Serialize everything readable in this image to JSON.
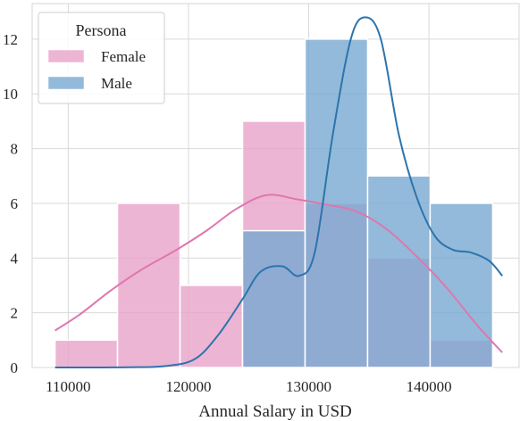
{
  "chart_data": {
    "type": "histogram",
    "xlabel": "Annual Salary in USD",
    "ylabel": "",
    "xlim": [
      107000,
      147500
    ],
    "ylim": [
      0,
      13.3
    ],
    "xticks": [
      110000,
      120000,
      130000,
      140000
    ],
    "yticks": [
      0,
      2,
      4,
      6,
      8,
      10,
      12
    ],
    "grid": true,
    "bins": [
      108900,
      114100,
      119300,
      124500,
      129700,
      134900,
      140100,
      145300
    ],
    "legend": {
      "title": "Persona",
      "position": "top-left"
    },
    "series": [
      {
        "name": "Female",
        "color": "#e9a3c9",
        "kde_color": "#de77ae",
        "counts": [
          1,
          6,
          3,
          9,
          6,
          4,
          1
        ],
        "kde": [
          [
            108900,
            1.35
          ],
          [
            111000,
            1.95
          ],
          [
            113500,
            2.8
          ],
          [
            116000,
            3.55
          ],
          [
            119000,
            4.3
          ],
          [
            121500,
            5.0
          ],
          [
            124000,
            5.8
          ],
          [
            126500,
            6.3
          ],
          [
            129000,
            6.15
          ],
          [
            131500,
            5.95
          ],
          [
            134000,
            5.7
          ],
          [
            136500,
            5.05
          ],
          [
            139000,
            4.05
          ],
          [
            141500,
            2.9
          ],
          [
            144000,
            1.55
          ],
          [
            146100,
            0.55
          ]
        ]
      },
      {
        "name": "Male",
        "color": "#78a9d1",
        "kde_color": "#2c74ad",
        "counts": [
          0,
          0,
          0,
          5,
          12,
          7,
          6
        ],
        "kde": [
          [
            108900,
            0.0
          ],
          [
            112000,
            0.0
          ],
          [
            115000,
            0.01
          ],
          [
            118000,
            0.05
          ],
          [
            120500,
            0.3
          ],
          [
            122500,
            1.2
          ],
          [
            124500,
            2.5
          ],
          [
            126000,
            3.5
          ],
          [
            127800,
            3.7
          ],
          [
            129200,
            3.35
          ],
          [
            130500,
            4.2
          ],
          [
            132000,
            8.5
          ],
          [
            133500,
            12.0
          ],
          [
            134700,
            12.8
          ],
          [
            136000,
            12.0
          ],
          [
            137500,
            8.5
          ],
          [
            139000,
            6.2
          ],
          [
            140500,
            4.8
          ],
          [
            142000,
            4.3
          ],
          [
            143500,
            4.2
          ],
          [
            145000,
            3.9
          ],
          [
            146100,
            3.35
          ]
        ]
      }
    ]
  }
}
